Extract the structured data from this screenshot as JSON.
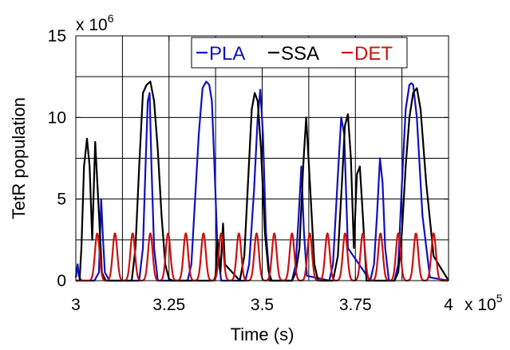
{
  "chart_data": {
    "type": "line",
    "title": "",
    "xlabel": "Time (s)",
    "ylabel": "TetR population",
    "x_multiplier": "x 10",
    "x_exponent": "5",
    "y_multiplier": "x 10",
    "y_exponent": "6",
    "xlim": [
      3.0,
      4.0
    ],
    "ylim": [
      0,
      15
    ],
    "x_ticks": [
      3.0,
      3.25,
      3.5,
      3.75,
      4.0
    ],
    "x_tick_labels": [
      "3",
      "3.25",
      "3.5",
      "3.75",
      "4"
    ],
    "y_ticks": [
      0,
      5,
      10,
      15
    ],
    "y_tick_labels": [
      "0",
      "5",
      "10",
      "15"
    ],
    "grid": true,
    "legend_placement": "top-right",
    "series": [
      {
        "name": "PLA",
        "color": "#1010c0",
        "x": [
          3.0,
          3.005,
          3.008,
          3.012,
          3.016,
          3.02,
          3.05,
          3.062,
          3.068,
          3.073,
          3.078,
          3.09,
          3.17,
          3.18,
          3.187,
          3.193,
          3.198,
          3.203,
          3.21,
          3.22,
          3.3,
          3.31,
          3.32,
          3.33,
          3.34,
          3.35,
          3.358,
          3.365,
          3.372,
          3.38,
          3.39,
          3.455,
          3.465,
          3.478,
          3.488,
          3.495,
          3.502,
          3.51,
          3.52,
          3.58,
          3.59,
          3.598,
          3.605,
          3.612,
          3.62,
          3.68,
          3.69,
          3.702,
          3.712,
          3.72,
          3.73,
          3.79,
          3.8,
          3.808,
          3.816,
          3.823,
          3.83,
          3.84,
          3.855,
          3.865,
          3.875,
          3.885,
          3.895,
          3.9,
          3.905,
          3.915,
          3.93,
          3.95,
          4.0
        ],
        "y": [
          0.2,
          1.0,
          0.3,
          0.1,
          0,
          0,
          0,
          0.5,
          5.0,
          2.5,
          0.5,
          0,
          0,
          2.0,
          7.0,
          11.0,
          11.5,
          7.0,
          2.0,
          0,
          0,
          1.0,
          5.0,
          9.0,
          11.8,
          12.2,
          12.0,
          11.0,
          7.0,
          2.0,
          0,
          0,
          1.0,
          5.5,
          10.0,
          11.7,
          9.0,
          3.0,
          0,
          0,
          1.0,
          4.0,
          7.0,
          3.0,
          0.3,
          0,
          1.0,
          6.0,
          10.0,
          9.0,
          2.0,
          0,
          1.0,
          4.0,
          7.5,
          6.0,
          2.0,
          0,
          0,
          1.0,
          6.0,
          10.5,
          12.0,
          12.1,
          12.0,
          10.0,
          4.0,
          0.2,
          0
        ]
      },
      {
        "name": "SSA",
        "color": "#000000",
        "x": [
          3.0,
          3.01,
          3.015,
          3.022,
          3.03,
          3.037,
          3.044,
          3.052,
          3.06,
          3.07,
          3.08,
          3.15,
          3.16,
          3.17,
          3.18,
          3.19,
          3.2,
          3.21,
          3.22,
          3.23,
          3.24,
          3.25,
          3.26,
          3.3,
          3.37,
          3.375,
          3.38,
          3.388,
          3.395,
          3.4,
          3.44,
          3.452,
          3.462,
          3.472,
          3.48,
          3.488,
          3.497,
          3.507,
          3.517,
          3.525,
          3.58,
          3.59,
          3.6,
          3.61,
          3.618,
          3.628,
          3.64,
          3.65,
          3.69,
          3.703,
          3.714,
          3.722,
          3.73,
          3.738,
          3.746,
          3.754,
          3.762,
          3.77,
          3.78,
          3.855,
          3.865,
          3.875,
          3.885,
          3.895,
          3.905,
          3.915,
          3.925,
          3.94,
          3.96,
          4.0
        ],
        "y": [
          0,
          0,
          2.0,
          7.0,
          8.7,
          7.0,
          2.5,
          8.5,
          5.0,
          0.5,
          0,
          0,
          2.0,
          7.0,
          11.5,
          12.0,
          12.2,
          11.0,
          8.0,
          4.0,
          1.0,
          0.1,
          0,
          0,
          0,
          0.3,
          2.5,
          0.5,
          3.5,
          1.0,
          0,
          1.5,
          6.0,
          10.5,
          11.5,
          11.0,
          8.0,
          3.0,
          0.6,
          0,
          0,
          0.5,
          2.0,
          7.0,
          10.0,
          6.0,
          1.0,
          0,
          0,
          1.5,
          6.0,
          9.5,
          10.2,
          7.5,
          2.0,
          6.5,
          7.0,
          4.0,
          0,
          0,
          0.5,
          3.0,
          7.0,
          10.0,
          11.5,
          11.8,
          10.5,
          6.0,
          1.5,
          0
        ]
      },
      {
        "name": "DET",
        "color": "#cc1010",
        "period": 0.0475,
        "phase": 3.0575,
        "amplitude": 2.9,
        "x": [
          3.0575,
          3.105,
          3.1525,
          3.2,
          3.2475,
          3.295,
          3.3425,
          3.39,
          3.4375,
          3.485,
          3.5325,
          3.58,
          3.6275,
          3.675,
          3.7225,
          3.77,
          3.8175,
          3.865,
          3.9125,
          3.96
        ],
        "y": [
          2.9,
          2.9,
          2.9,
          2.9,
          2.9,
          2.9,
          2.9,
          2.9,
          2.9,
          2.9,
          2.9,
          2.9,
          2.9,
          2.9,
          2.9,
          2.9,
          2.9,
          2.9,
          2.9,
          2.9
        ]
      }
    ]
  }
}
